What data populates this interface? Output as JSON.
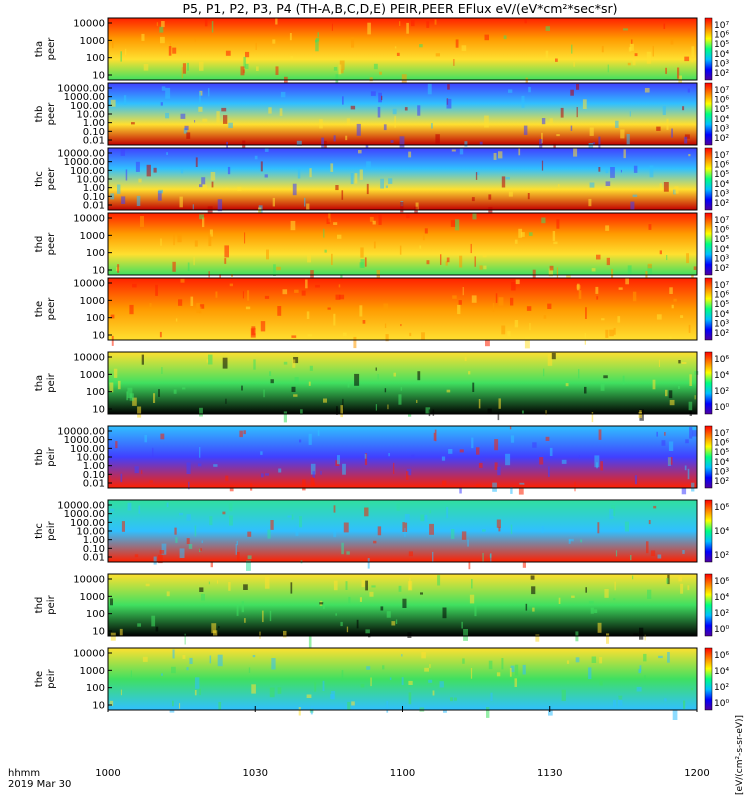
{
  "title": "P5, P1, P2, P3, P4 (TH-A,B,C,D,E) PEIR,PEER EFlux eV/(eV*cm²*sec*sr)",
  "footer": {
    "hhmm": "hhmm",
    "date": "2019 Mar 30"
  },
  "colorbar_label": "[eV/(cm²-s-sr-eV)]",
  "chart_data": [
    {
      "type": "heatmap",
      "probe": "tha",
      "instrument": "peer",
      "ylabel": [
        "tha",
        "peer"
      ],
      "yscale": "log",
      "yticks": [
        "10000",
        "1000",
        "100",
        "10"
      ],
      "cbar_ticks": [
        "10⁷",
        "10⁶",
        "10⁵",
        "10⁴",
        "10³",
        "10²"
      ],
      "color_level": "high",
      "colors": [
        "#ff2000",
        "#ff9a00",
        "#ffe030",
        "#40e060"
      ]
    },
    {
      "type": "heatmap",
      "probe": "thb",
      "instrument": "peer",
      "ylabel": [
        "thb",
        "peer"
      ],
      "yscale": "log",
      "yticks": [
        "10000.00",
        "1000.00",
        "100.00",
        "10.00",
        "1.00",
        "0.10",
        "0.01"
      ],
      "cbar_ticks": [
        "10⁷",
        "10⁶",
        "10⁵",
        "10⁴",
        "10³",
        "10²"
      ],
      "color_level": "bands",
      "colors": [
        "#4040ff",
        "#30c0ff",
        "#ffe030",
        "#c00000"
      ]
    },
    {
      "type": "heatmap",
      "probe": "thc",
      "instrument": "peer",
      "ylabel": [
        "thc",
        "peer"
      ],
      "yscale": "log",
      "yticks": [
        "10000.00",
        "1000.00",
        "100.00",
        "10.00",
        "1.00",
        "0.10",
        "0.01"
      ],
      "cbar_ticks": [
        "10⁷",
        "10⁶",
        "10⁵",
        "10⁴",
        "10³",
        "10²"
      ],
      "color_level": "bands",
      "colors": [
        "#4040ff",
        "#30c0ff",
        "#ffe030",
        "#c00000"
      ]
    },
    {
      "type": "heatmap",
      "probe": "thd",
      "instrument": "peer",
      "ylabel": [
        "thd",
        "peer"
      ],
      "yscale": "log",
      "yticks": [
        "10000",
        "1000",
        "100",
        "10"
      ],
      "cbar_ticks": [
        "10⁷",
        "10⁶",
        "10⁵",
        "10⁴",
        "10³",
        "10²"
      ],
      "color_level": "high",
      "colors": [
        "#ff2000",
        "#ff9a00",
        "#ffe030",
        "#40e060"
      ]
    },
    {
      "type": "heatmap",
      "probe": "the",
      "instrument": "peer",
      "ylabel": [
        "the",
        "peer"
      ],
      "yscale": "log",
      "yticks": [
        "10000",
        "1000",
        "100",
        "10"
      ],
      "cbar_ticks": [
        "10⁷",
        "10⁶",
        "10⁵",
        "10⁴",
        "10³",
        "10²"
      ],
      "color_level": "orange",
      "colors": [
        "#ff2000",
        "#ff9a00",
        "#ffe030"
      ]
    },
    {
      "type": "heatmap",
      "probe": "tha",
      "instrument": "peir",
      "ylabel": [
        "tha",
        "peir"
      ],
      "yscale": "log",
      "yticks": [
        "10000",
        "1000",
        "100",
        "10"
      ],
      "cbar_ticks": [
        "10⁶",
        "10⁴",
        "10²",
        "10⁰"
      ],
      "color_level": "low",
      "colors": [
        "#ffe030",
        "#40e060",
        "#000000"
      ]
    },
    {
      "type": "heatmap",
      "probe": "thb",
      "instrument": "peir",
      "ylabel": [
        "thb",
        "peir"
      ],
      "yscale": "log",
      "yticks": [
        "10000.00",
        "1000.00",
        "100.00",
        "10.00",
        "1.00",
        "0.10",
        "0.01"
      ],
      "cbar_ticks": [
        "10⁷",
        "10⁶",
        "10⁵",
        "10⁴",
        "10³",
        "10²"
      ],
      "color_level": "cyan",
      "colors": [
        "#30c0ff",
        "#4040ff",
        "#ff2000"
      ]
    },
    {
      "type": "heatmap",
      "probe": "thc",
      "instrument": "peir",
      "ylabel": [
        "thc",
        "peir"
      ],
      "yscale": "log",
      "yticks": [
        "10000.00",
        "1000.00",
        "100.00",
        "10.00",
        "1.00",
        "0.10",
        "0.01"
      ],
      "cbar_ticks": [
        "10⁶",
        "10⁴",
        "10²"
      ],
      "color_level": "cyan",
      "colors": [
        "#30e0a0",
        "#30c0ff",
        "#ff2000"
      ]
    },
    {
      "type": "heatmap",
      "probe": "thd",
      "instrument": "peir",
      "ylabel": [
        "thd",
        "peir"
      ],
      "yscale": "log",
      "yticks": [
        "10000",
        "1000",
        "100",
        "10"
      ],
      "cbar_ticks": [
        "10⁶",
        "10⁴",
        "10²",
        "10⁰"
      ],
      "color_level": "low",
      "colors": [
        "#ffe030",
        "#40e060",
        "#000000"
      ]
    },
    {
      "type": "heatmap",
      "probe": "the",
      "instrument": "peir",
      "ylabel": [
        "the",
        "peir"
      ],
      "yscale": "log",
      "yticks": [
        "10000",
        "1000",
        "100",
        "10"
      ],
      "cbar_ticks": [
        "10⁶",
        "10⁴",
        "10²",
        "10⁰"
      ],
      "color_level": "green",
      "colors": [
        "#ffe030",
        "#40e060",
        "#30c0ff"
      ]
    }
  ],
  "xaxis": {
    "ticks": [
      "1000",
      "1030",
      "1100",
      "1130",
      "1200"
    ]
  }
}
